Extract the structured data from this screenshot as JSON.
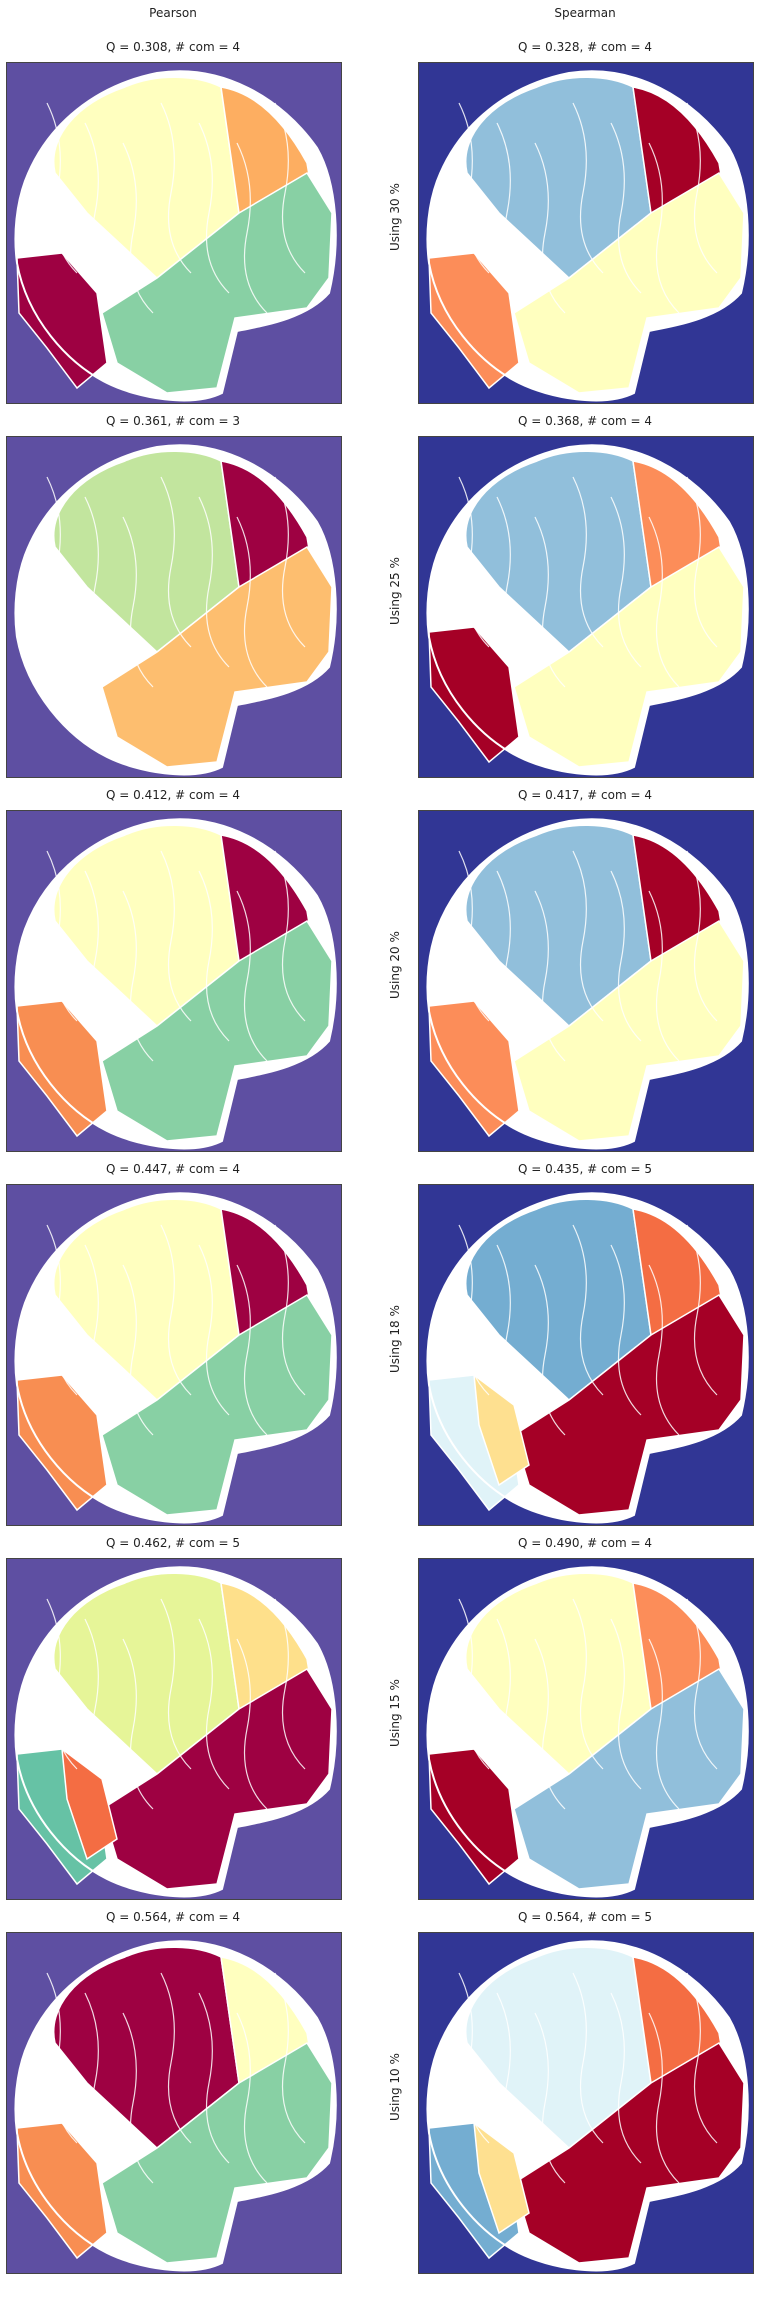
{
  "columns": [
    "Pearson",
    "Spearman"
  ],
  "chart_data": {
    "type": "heatmap",
    "rows": [
      {
        "label": "Using 30 %",
        "panels": [
          {
            "title": "Q = 0.308,  # com = 4",
            "cmap": "Spectral",
            "background": "#5e4fa2",
            "communities": [
              "#ffffbf",
              "#fdae61",
              "#88d0a4",
              "#9e0142"
            ]
          },
          {
            "title": "Q = 0.328,  # com = 4",
            "cmap": "RdYlBu",
            "background": "#313695",
            "communities": [
              "#91bfdb",
              "#a50026",
              "#ffffbf",
              "#fc8d59"
            ]
          }
        ]
      },
      {
        "label": "Using 25 %",
        "panels": [
          {
            "title": "Q = 0.361,  # com = 3",
            "cmap": "Spectral",
            "background": "#5e4fa2",
            "communities": [
              "#c2e59e",
              "#9e0142",
              "#fdbe6f"
            ]
          },
          {
            "title": "Q = 0.368,  # com = 4",
            "cmap": "RdYlBu",
            "background": "#313695",
            "communities": [
              "#91bfdb",
              "#fc8d59",
              "#ffffbf",
              "#a50026"
            ]
          }
        ]
      },
      {
        "label": "Using 20 %",
        "panels": [
          {
            "title": "Q = 0.412,  # com = 4",
            "cmap": "Spectral",
            "background": "#5e4fa2",
            "communities": [
              "#ffffbf",
              "#9e0142",
              "#88d0a4",
              "#f88e52"
            ]
          },
          {
            "title": "Q = 0.417,  # com = 4",
            "cmap": "RdYlBu",
            "background": "#313695",
            "communities": [
              "#91bfdb",
              "#a50026",
              "#ffffbf",
              "#fc8d59"
            ]
          }
        ]
      },
      {
        "label": "Using 18 %",
        "panels": [
          {
            "title": "Q = 0.447,  # com = 4",
            "cmap": "Spectral",
            "background": "#5e4fa2",
            "communities": [
              "#ffffbf",
              "#9e0142",
              "#88d0a4",
              "#f88e52"
            ]
          },
          {
            "title": "Q = 0.435,  # com = 5",
            "cmap": "RdYlBu",
            "background": "#313695",
            "communities": [
              "#74add1",
              "#f46d43",
              "#a50026",
              "#e0f3f8",
              "#fee090"
            ]
          }
        ]
      },
      {
        "label": "Using 15 %",
        "panels": [
          {
            "title": "Q = 0.462,  # com = 5",
            "cmap": "Spectral",
            "background": "#5e4fa2",
            "communities": [
              "#e6f598",
              "#fee08b",
              "#9e0142",
              "#66c2a5",
              "#f46d43"
            ]
          },
          {
            "title": "Q = 0.490,  # com = 4",
            "cmap": "RdYlBu",
            "background": "#313695",
            "communities": [
              "#ffffbf",
              "#fc8d59",
              "#91bfdb",
              "#a50026"
            ]
          }
        ]
      },
      {
        "label": "Using 10 %",
        "panels": [
          {
            "title": "Q = 0.564,  # com = 4",
            "cmap": "Spectral",
            "background": "#5e4fa2",
            "communities": [
              "#9e0142",
              "#ffffbf",
              "#88d0a4",
              "#f88e52"
            ]
          },
          {
            "title": "Q = 0.564,  # com = 5",
            "cmap": "RdYlBu",
            "background": "#313695",
            "communities": [
              "#e0f3f8",
              "#f46d43",
              "#a50026",
              "#74add1",
              "#fee090"
            ]
          }
        ]
      }
    ]
  }
}
